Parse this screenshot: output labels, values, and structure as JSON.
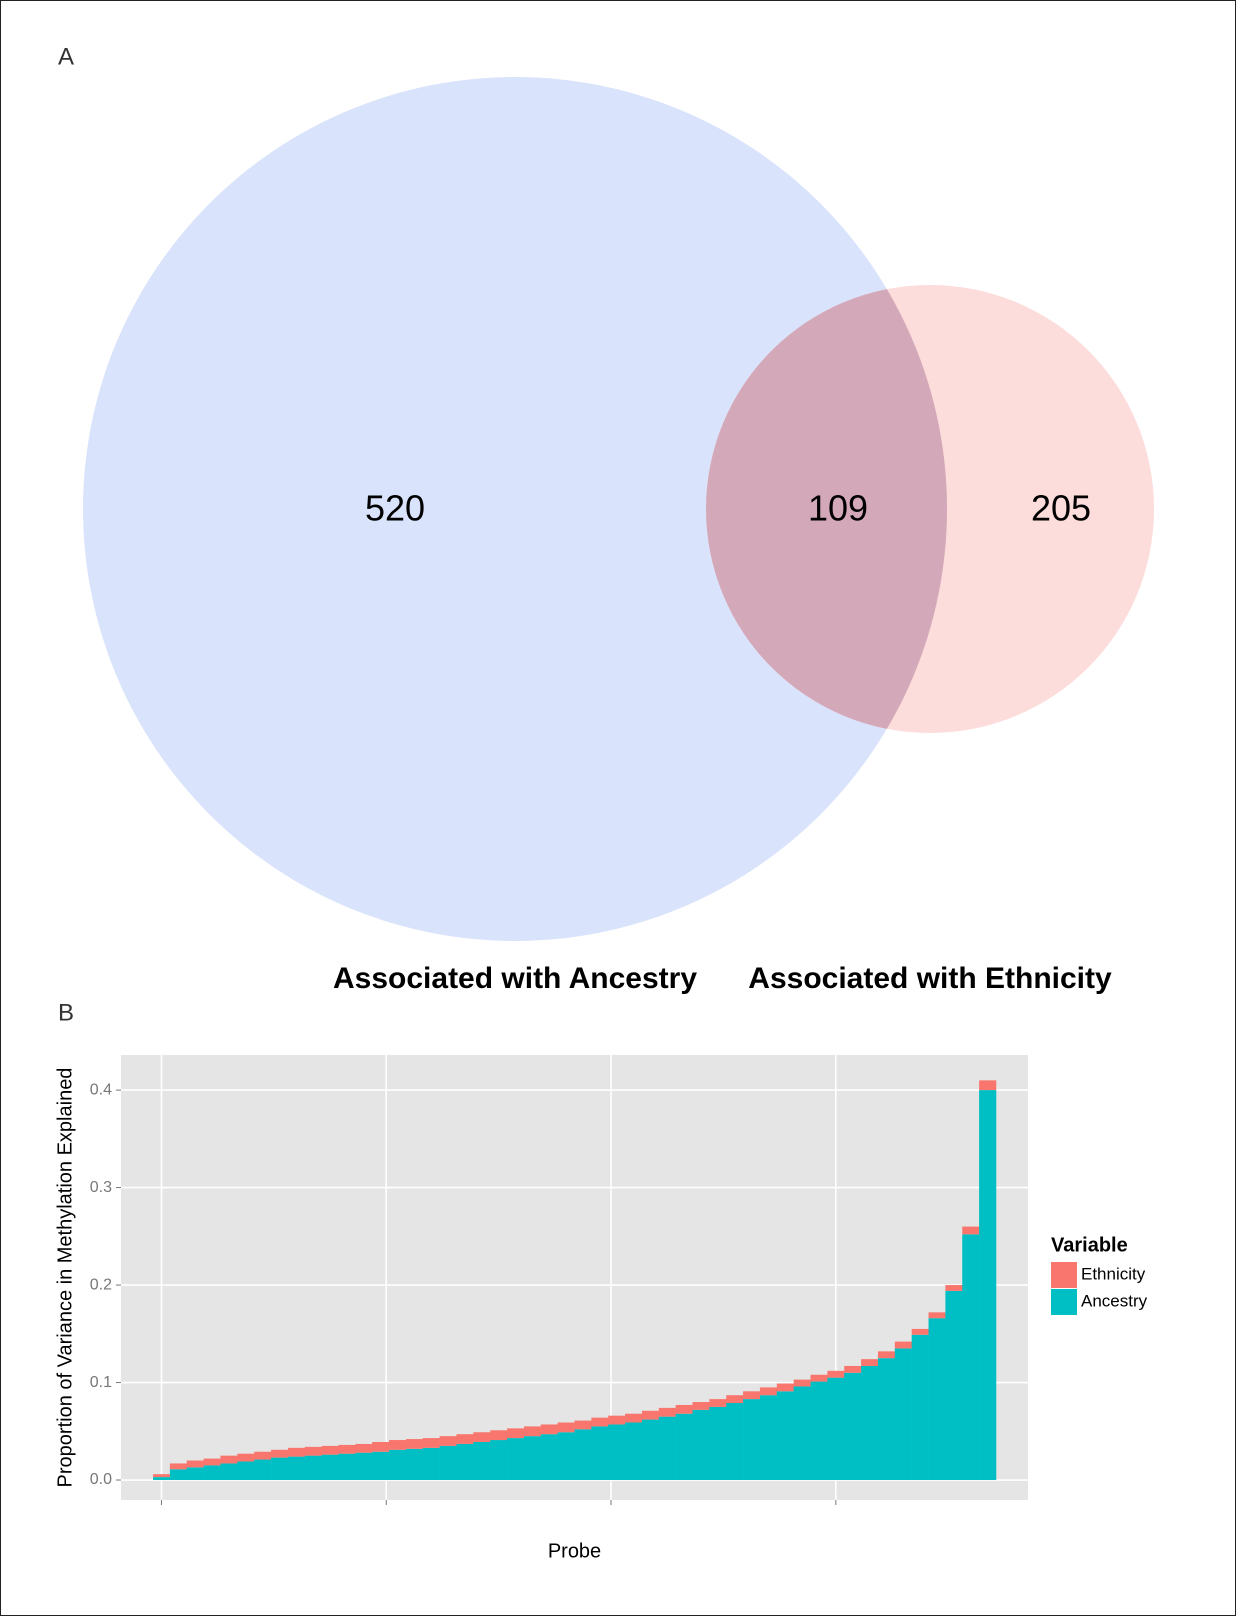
{
  "panel_a": {
    "label": "A",
    "venn": {
      "type": "venn",
      "sets": [
        "Associated with Ancestry",
        "Associated with Ethnicity"
      ],
      "regions": [
        520,
        109,
        205
      ]
    }
  },
  "panel_b": {
    "label": "B",
    "chart_data": {
      "type": "bar",
      "stacked": true,
      "x_label": "Probe",
      "y_label": "Proportion of Variance in Methylation Explained",
      "x": [
        0,
        15,
        30,
        45,
        60,
        75,
        90,
        105,
        120,
        135,
        150,
        165,
        180,
        195,
        210,
        225,
        240,
        255,
        270,
        285,
        300,
        315,
        330,
        345,
        360,
        375,
        390,
        405,
        420,
        435,
        450,
        465,
        480,
        495,
        510,
        525,
        540,
        555,
        570,
        585,
        600,
        615,
        630,
        645,
        660,
        675,
        690,
        705,
        720,
        735
      ],
      "series": [
        {
          "name": "Ethnicity",
          "color": "#f8766d",
          "values": [
            0.003,
            0.006,
            0.007,
            0.007,
            0.008,
            0.008,
            0.008,
            0.008,
            0.009,
            0.009,
            0.009,
            0.009,
            0.009,
            0.01,
            0.01,
            0.01,
            0.01,
            0.01,
            0.01,
            0.01,
            0.01,
            0.01,
            0.01,
            0.01,
            0.01,
            0.009,
            0.009,
            0.009,
            0.009,
            0.009,
            0.009,
            0.009,
            0.008,
            0.008,
            0.008,
            0.008,
            0.008,
            0.008,
            0.007,
            0.007,
            0.007,
            0.007,
            0.007,
            0.007,
            0.007,
            0.006,
            0.006,
            0.006,
            0.008,
            0.01
          ]
        },
        {
          "name": "Ancestry",
          "color": "#00bfc4",
          "values": [
            0.003,
            0.011,
            0.013,
            0.015,
            0.017,
            0.019,
            0.021,
            0.023,
            0.024,
            0.025,
            0.026,
            0.027,
            0.028,
            0.029,
            0.031,
            0.032,
            0.033,
            0.035,
            0.037,
            0.039,
            0.041,
            0.043,
            0.045,
            0.047,
            0.049,
            0.052,
            0.055,
            0.057,
            0.059,
            0.062,
            0.065,
            0.068,
            0.072,
            0.075,
            0.079,
            0.083,
            0.087,
            0.091,
            0.096,
            0.101,
            0.105,
            0.11,
            0.117,
            0.125,
            0.135,
            0.149,
            0.166,
            0.194,
            0.252,
            0.4
          ]
        }
      ],
      "xlim": [
        -36,
        771
      ],
      "xticks": [
        0,
        200,
        400,
        600
      ],
      "ylim": [
        -0.0205,
        0.436
      ],
      "yticks": [
        {
          "value": 0,
          "label": "0.0"
        },
        0.1,
        0.2,
        0.3,
        0.4
      ],
      "grid": true,
      "legend_title": "Variable",
      "legend": "right"
    }
  }
}
